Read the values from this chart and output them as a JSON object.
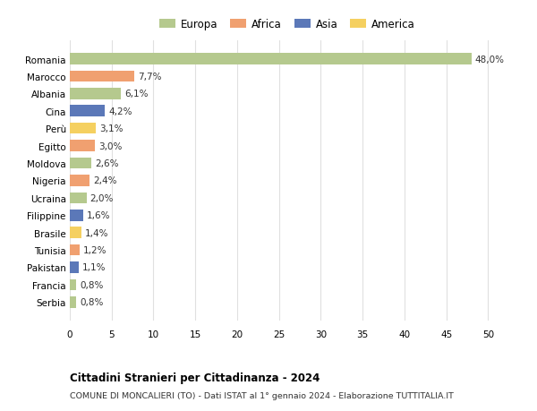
{
  "countries": [
    "Romania",
    "Marocco",
    "Albania",
    "Cina",
    "Perù",
    "Egitto",
    "Moldova",
    "Nigeria",
    "Ucraina",
    "Filippine",
    "Brasile",
    "Tunisia",
    "Pakistan",
    "Francia",
    "Serbia"
  ],
  "values": [
    48.0,
    7.7,
    6.1,
    4.2,
    3.1,
    3.0,
    2.6,
    2.4,
    2.0,
    1.6,
    1.4,
    1.2,
    1.1,
    0.8,
    0.8
  ],
  "labels": [
    "48,0%",
    "7,7%",
    "6,1%",
    "4,2%",
    "3,1%",
    "3,0%",
    "2,6%",
    "2,4%",
    "2,0%",
    "1,6%",
    "1,4%",
    "1,2%",
    "1,1%",
    "0,8%",
    "0,8%"
  ],
  "continents": [
    "Europa",
    "Africa",
    "Europa",
    "Asia",
    "America",
    "Africa",
    "Europa",
    "Africa",
    "Europa",
    "Asia",
    "America",
    "Africa",
    "Asia",
    "Europa",
    "Europa"
  ],
  "colors": {
    "Europa": "#b5c98e",
    "Africa": "#f0a070",
    "Asia": "#5b78b8",
    "America": "#f5d060"
  },
  "legend_order": [
    "Europa",
    "Africa",
    "Asia",
    "America"
  ],
  "title": "Cittadini Stranieri per Cittadinanza - 2024",
  "subtitle": "COMUNE DI MONCALIERI (TO) - Dati ISTAT al 1° gennaio 2024 - Elaborazione TUTTITALIA.IT",
  "xlim": [
    0,
    52
  ],
  "xticks": [
    0,
    5,
    10,
    15,
    20,
    25,
    30,
    35,
    40,
    45,
    50
  ],
  "background_color": "#ffffff",
  "grid_color": "#e0e0e0"
}
